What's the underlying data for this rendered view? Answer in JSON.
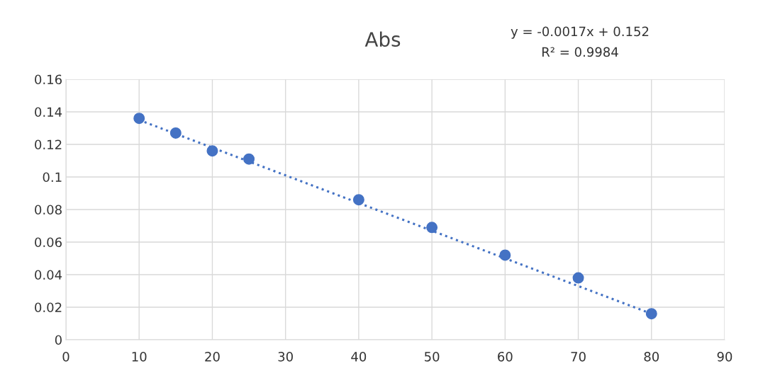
{
  "chart_data": {
    "type": "scatter",
    "title": "Abs",
    "annotations": [
      "y = -0.0017x + 0.152",
      "R² = 0.9984"
    ],
    "series": [
      {
        "x": [
          10,
          15,
          20,
          25,
          40,
          50,
          60,
          70,
          80
        ],
        "values": [
          0.136,
          0.127,
          0.116,
          0.111,
          0.086,
          0.069,
          0.052,
          0.038,
          0.016
        ],
        "color": "#4472c4",
        "marker": "circle"
      },
      {
        "type": "line",
        "x": [
          10,
          80
        ],
        "values": [
          0.135,
          0.016
        ],
        "color": "#4472c4",
        "line_style": "dotted",
        "marker": "none"
      }
    ],
    "xlim": [
      0,
      90
    ],
    "xticks": [
      0,
      10,
      20,
      30,
      40,
      50,
      60,
      70,
      80,
      90
    ],
    "ylim": [
      0,
      0.16
    ],
    "yticks": [
      0,
      {
        "value": 0.02,
        "label": "0.02"
      },
      {
        "value": 0.04,
        "label": "0.04"
      },
      {
        "value": 0.06,
        "label": "0.06"
      },
      {
        "value": 0.08,
        "label": "0.08"
      },
      {
        "value": 0.1,
        "label": "0.1"
      },
      {
        "value": 0.12,
        "label": "0.12"
      },
      {
        "value": 0.14,
        "label": "0.14"
      },
      {
        "value": 0.16,
        "label": "0.16"
      }
    ],
    "grid": true,
    "legend": false
  }
}
